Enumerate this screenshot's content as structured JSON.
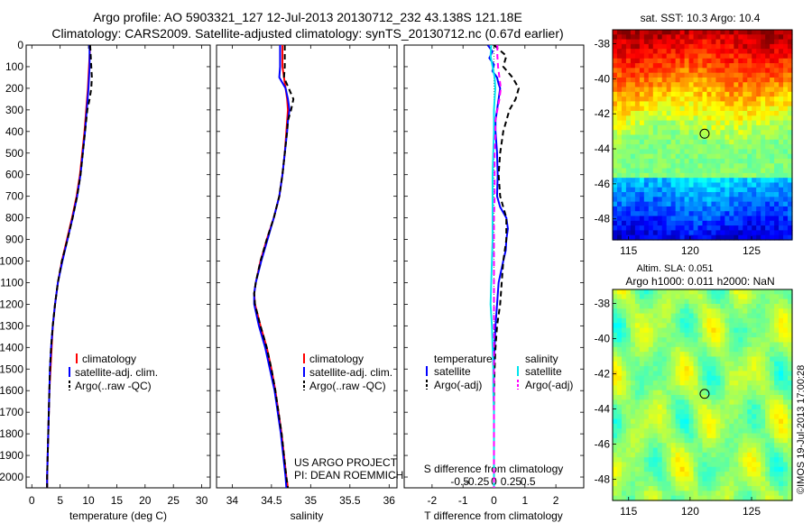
{
  "header": {
    "line1": "Argo profile: AO 5903321_127 12-Jul-2013 20130712_232 43.138S 121.18E",
    "line2": "Climatology: CARS2009. Satellite-adjusted climatology: synTS_20130712.nc (0.67d earlier)"
  },
  "colors": {
    "climatology": "#ff0000",
    "satellite": "#0000ff",
    "argo": "#000000",
    "satellite_salinity": "#00e5ee",
    "argo_salinity": "#ff00ff"
  },
  "depth_axis": {
    "ticks": [
      0,
      100,
      200,
      300,
      400,
      500,
      600,
      700,
      800,
      900,
      1000,
      1100,
      1200,
      1300,
      1400,
      1500,
      1600,
      1700,
      1800,
      1900,
      2000
    ],
    "range": [
      0,
      2050
    ]
  },
  "chart_data": [
    {
      "type": "line",
      "xlabel": "temperature (deg C)",
      "xlim": [
        -1,
        31.5
      ],
      "xticks": [
        0,
        5,
        10,
        15,
        20,
        25,
        30
      ],
      "legend": {
        "placement": "lower-middle",
        "entries": [
          "climatology",
          "satellite-adj. clim.",
          "Argo(..raw -QC)"
        ]
      },
      "series": [
        {
          "name": "climatology",
          "color": "#ff0000",
          "style": "solid",
          "depth": [
            0,
            100,
            200,
            300,
            400,
            500,
            600,
            700,
            800,
            900,
            1000,
            1100,
            1200,
            1300,
            1400,
            1500,
            1600,
            1700,
            1800,
            1900,
            2000,
            2050
          ],
          "values": [
            10.3,
            10.1,
            9.9,
            9.6,
            9.3,
            8.9,
            8.5,
            7.9,
            7.1,
            6.2,
            5.3,
            4.6,
            4.1,
            3.7,
            3.5,
            3.3,
            3.1,
            3.0,
            2.9,
            2.8,
            2.7,
            2.7
          ]
        },
        {
          "name": "satellite-adj. clim.",
          "color": "#0000ff",
          "style": "solid",
          "depth": [
            0,
            100,
            200,
            300,
            400,
            500,
            600,
            700,
            800,
            900,
            1000,
            1100,
            1200,
            1300,
            1400,
            1500,
            1600,
            1700,
            1800,
            1900,
            2000,
            2050
          ],
          "values": [
            10.2,
            10.2,
            10.0,
            9.7,
            9.4,
            9.0,
            8.6,
            8.0,
            7.2,
            6.3,
            5.4,
            4.6,
            4.1,
            3.7,
            3.4,
            3.2,
            3.1,
            3.0,
            2.9,
            2.8,
            2.7,
            2.7
          ]
        },
        {
          "name": "Argo(..raw -QC)",
          "color": "#000000",
          "style": "dashed",
          "depth": [
            0,
            50,
            100,
            150,
            200,
            250,
            300,
            400,
            500,
            600,
            700,
            800,
            900,
            1000,
            1100,
            1200,
            1300,
            1400,
            1500,
            1600,
            1700,
            1800,
            1900,
            2000,
            2050
          ],
          "values": [
            10.3,
            10.4,
            10.5,
            10.6,
            10.5,
            10.2,
            9.8,
            9.4,
            9.0,
            8.6,
            8.0,
            7.2,
            6.3,
            5.3,
            4.6,
            4.1,
            3.7,
            3.4,
            3.2,
            3.1,
            3.0,
            2.9,
            2.8,
            2.7,
            2.7
          ]
        }
      ]
    },
    {
      "type": "line",
      "xlabel": "salinity",
      "xlim": [
        33.8,
        36.1
      ],
      "xticks": [
        34,
        34.5,
        35,
        35.5,
        36
      ],
      "legend": {
        "placement": "lower-right",
        "entries": [
          "climatology",
          "satellite-adj. clim.",
          "Argo(..raw -QC)"
        ]
      },
      "annotation": [
        "US ARGO PROJECT",
        "PI: DEAN ROEMMICH"
      ],
      "series": [
        {
          "name": "climatology",
          "color": "#ff0000",
          "style": "solid",
          "depth": [
            0,
            100,
            150,
            200,
            250,
            300,
            350,
            400,
            500,
            600,
            700,
            800,
            900,
            1000,
            1100,
            1150,
            1200,
            1300,
            1400,
            1500,
            1600,
            1700,
            1800,
            1900,
            2000,
            2050
          ],
          "values": [
            34.64,
            34.64,
            34.66,
            34.68,
            34.7,
            34.71,
            34.7,
            34.69,
            34.67,
            34.64,
            34.6,
            34.53,
            34.44,
            34.36,
            34.3,
            34.28,
            34.29,
            34.36,
            34.44,
            34.5,
            34.55,
            34.59,
            34.63,
            34.66,
            34.69,
            34.71
          ]
        },
        {
          "name": "satellite-adj. clim.",
          "color": "#0000ff",
          "style": "solid",
          "depth": [
            0,
            100,
            150,
            200,
            250,
            300,
            350,
            400,
            500,
            600,
            700,
            800,
            900,
            1000,
            1100,
            1150,
            1200,
            1300,
            1400,
            1500,
            1600,
            1700,
            1800,
            1900,
            2000,
            2050
          ],
          "values": [
            34.61,
            34.61,
            34.6,
            34.68,
            34.71,
            34.73,
            34.71,
            34.7,
            34.67,
            34.64,
            34.6,
            34.53,
            34.45,
            34.37,
            34.3,
            34.28,
            34.28,
            34.34,
            34.42,
            34.48,
            34.54,
            34.58,
            34.62,
            34.65,
            34.68,
            34.69
          ]
        },
        {
          "name": "Argo(..raw -QC)",
          "color": "#000000",
          "style": "dashed",
          "depth": [
            0,
            100,
            150,
            200,
            250,
            300,
            350,
            400,
            500,
            600,
            700,
            800,
            900,
            1000,
            1100,
            1150,
            1200,
            1300,
            1400,
            1500,
            1600,
            1700,
            1800,
            1900,
            2000,
            2050
          ],
          "values": [
            34.67,
            34.67,
            34.66,
            34.72,
            34.78,
            34.75,
            34.71,
            34.7,
            34.67,
            34.64,
            34.6,
            34.53,
            34.44,
            34.36,
            34.3,
            34.28,
            34.29,
            34.36,
            34.44,
            34.5,
            34.55,
            34.59,
            34.63,
            34.66,
            34.69,
            34.71
          ]
        }
      ]
    },
    {
      "type": "line",
      "xlabel": "T difference from climatology",
      "xlim": [
        -2.9,
        2.9
      ],
      "xticks": [
        -2,
        -1,
        0,
        1,
        2
      ],
      "top_axis": {
        "label": "S difference from climatology",
        "ticks": [
          -0.5,
          -0.25,
          0,
          0.25,
          0.5
        ],
        "tick_labels": [
          "-0.5",
          "-0.25",
          "0",
          "0.25",
          "0.5"
        ]
      },
      "legend": {
        "placement": "lower-middle",
        "col1_title": "temperature",
        "col1": [
          "satellite",
          "Argo(-adj)"
        ],
        "col2_title": "salinity",
        "col2": [
          "satellite",
          "Argo(-adj)"
        ]
      },
      "series": [
        {
          "name": "temperature satellite",
          "color": "#0000ff",
          "style": "solid",
          "depth": [
            0,
            30,
            60,
            90,
            120,
            150,
            180,
            200,
            250,
            300,
            350,
            400,
            500,
            600,
            700,
            750,
            800,
            850,
            900,
            950,
            1000,
            1100,
            1200,
            1300,
            1400,
            1500,
            1600,
            1700,
            1800,
            1900,
            2000,
            2050
          ],
          "values": [
            -0.2,
            -0.05,
            -0.15,
            0.0,
            -0.05,
            0.1,
            0.15,
            0.2,
            0.15,
            0.1,
            0.05,
            0.05,
            0.1,
            0.12,
            0.1,
            0.2,
            0.4,
            0.45,
            0.4,
            0.38,
            0.3,
            0.15,
            0.1,
            0.05,
            0.02,
            0.0,
            0.0,
            0.0,
            0.0,
            0.0,
            0.0,
            0.0
          ]
        },
        {
          "name": "temperature Argo(-adj)",
          "color": "#000000",
          "style": "dashed",
          "depth": [
            0,
            50,
            100,
            150,
            200,
            250,
            300,
            350,
            400,
            500,
            600,
            700,
            800,
            900,
            1000,
            1100,
            1200,
            1300,
            1400,
            1500,
            1600,
            1700,
            1800,
            1900,
            2000,
            2050
          ],
          "values": [
            0.0,
            0.4,
            0.3,
            0.6,
            0.8,
            0.7,
            0.5,
            0.4,
            0.3,
            0.2,
            0.15,
            0.2,
            0.4,
            0.4,
            0.3,
            0.25,
            0.2,
            0.1,
            0.05,
            0.02,
            0.0,
            0.0,
            0.0,
            0.0,
            0.0,
            0.0
          ]
        },
        {
          "name": "salinity satellite",
          "color": "#00e5ee",
          "style": "solid",
          "depth": [
            0,
            50,
            100,
            150,
            200,
            250,
            300,
            400,
            500,
            600,
            700,
            800,
            900,
            1000,
            1100,
            1200,
            1250,
            1300,
            1400,
            1500,
            1600,
            1700,
            1800,
            1900,
            2000,
            2050
          ],
          "values": [
            -0.04,
            -0.05,
            -0.02,
            0.01,
            0.02,
            0.01,
            0.0,
            0.0,
            -0.01,
            -0.02,
            -0.02,
            -0.02,
            -0.02,
            -0.03,
            -0.04,
            -0.05,
            -0.04,
            -0.03,
            -0.02,
            -0.01,
            -0.01,
            0.0,
            0.0,
            0.0,
            0.0,
            0.0
          ]
        },
        {
          "name": "salinity Argo(-adj)",
          "color": "#ff00ff",
          "style": "dashed",
          "depth": [
            0,
            50,
            100,
            150,
            200,
            250,
            300,
            350,
            400,
            500,
            600,
            700,
            800,
            900,
            1000,
            1100,
            1200,
            1300,
            1400,
            1500,
            1600,
            1700,
            1800,
            1900,
            2000,
            2050
          ],
          "values": [
            0.05,
            0.05,
            0.06,
            0.08,
            0.1,
            0.08,
            0.05,
            0.02,
            0.02,
            0.01,
            0.01,
            0.01,
            0.0,
            0.0,
            0.0,
            0.0,
            0.0,
            0.0,
            0.0,
            0.0,
            0.0,
            0.0,
            0.0,
            0.0,
            0.0,
            0.0
          ]
        }
      ]
    },
    {
      "type": "heatmap",
      "title": "sat. SST: 10.3  Argo: 10.4",
      "xlim": [
        113.7,
        128.3
      ],
      "ylim": [
        -49.2,
        -37.2
      ],
      "xticks": [
        115,
        120,
        125
      ],
      "yticks": [
        -38,
        -40,
        -42,
        -44,
        -46,
        -48
      ],
      "marker": {
        "lon": 121.18,
        "lat": -43.138
      }
    },
    {
      "type": "heatmap",
      "title_lines": [
        "Altim. SLA: 0.051",
        "Argo h1000: 0.011  h2000: NaN"
      ],
      "xlim": [
        113.7,
        128.3
      ],
      "ylim": [
        -49.2,
        -37.2
      ],
      "xticks": [
        115,
        120,
        125
      ],
      "yticks": [
        -38,
        -40,
        -42,
        -44,
        -46,
        -48
      ],
      "marker": {
        "lon": 121.18,
        "lat": -43.138
      }
    }
  ],
  "footer": {
    "stamp": "©IMOS 19-Jul-2013 17:00:28"
  }
}
